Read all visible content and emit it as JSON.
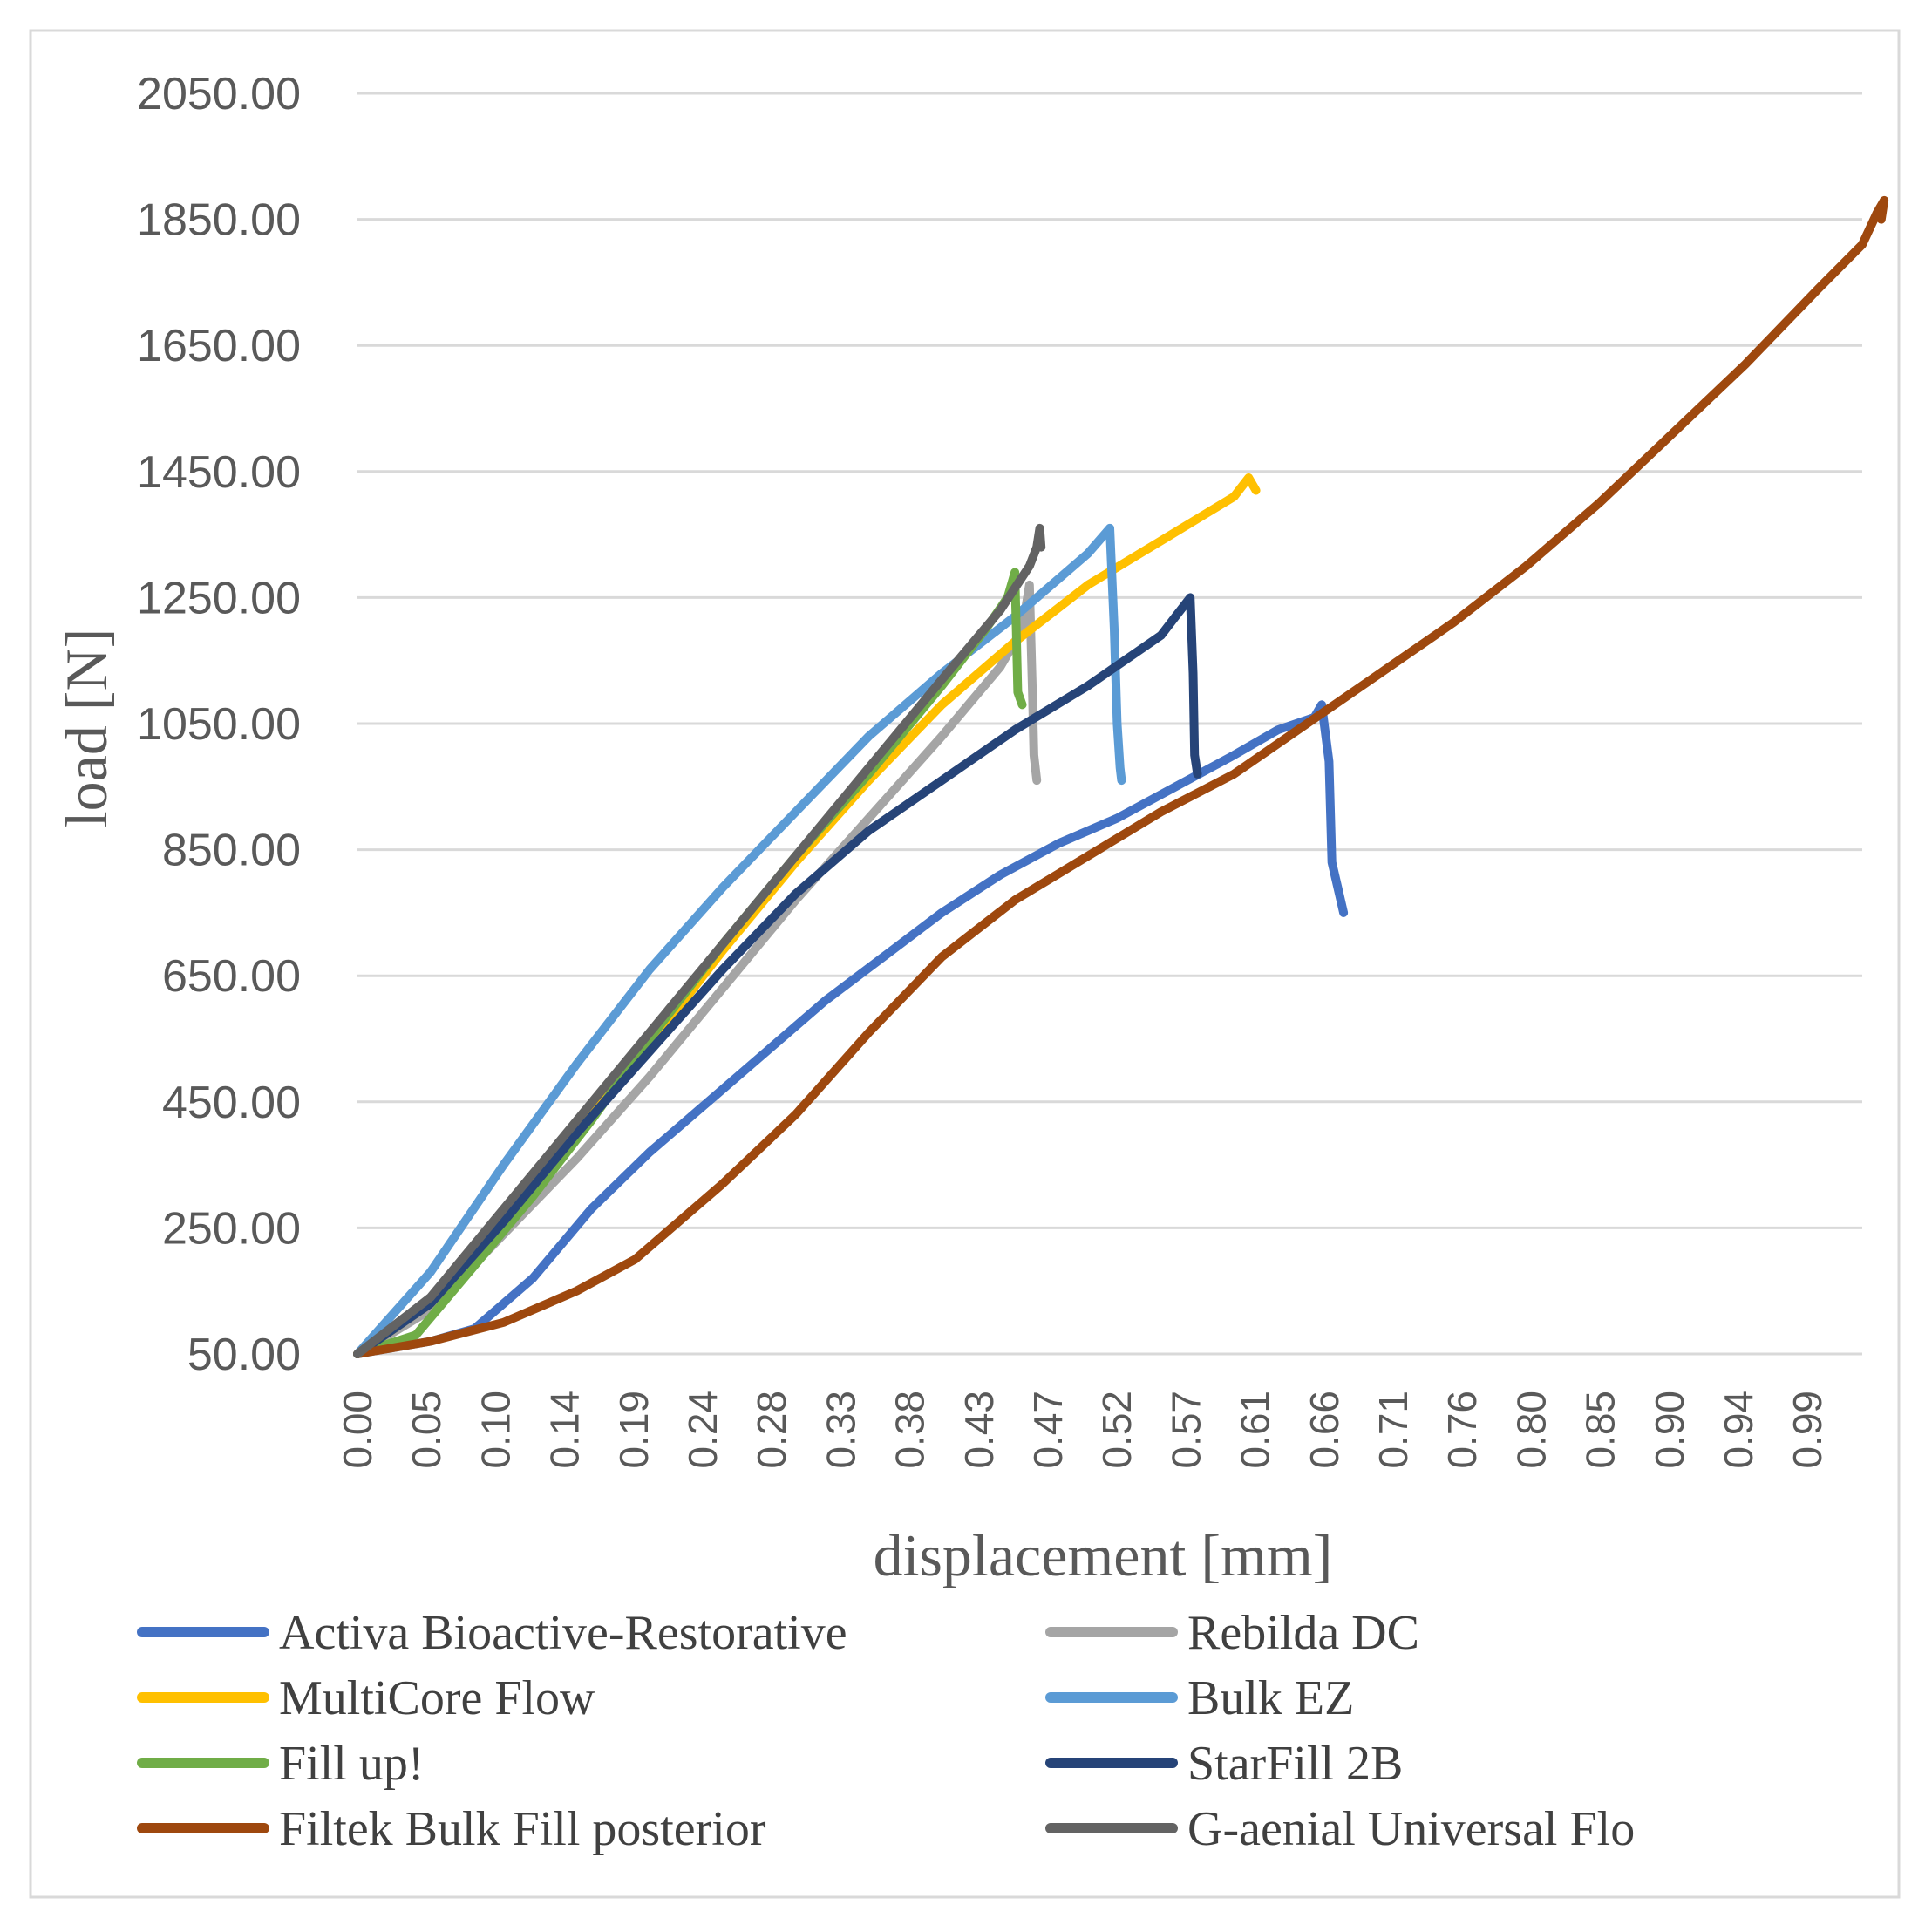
{
  "chart_data": {
    "type": "line",
    "title": "",
    "xlabel": "displacement [mm]",
    "ylabel": "load [N]",
    "xlim": [
      0,
      1.03
    ],
    "ylim": [
      50,
      2050
    ],
    "y_ticks": [
      "50.00",
      "250.00",
      "450.00",
      "650.00",
      "850.00",
      "1050.00",
      "1250.00",
      "1450.00",
      "1650.00",
      "1850.00",
      "2050.00"
    ],
    "x_ticks": [
      "0.00",
      "0.05",
      "0.10",
      "0.14",
      "0.19",
      "0.24",
      "0.28",
      "0.33",
      "0.38",
      "0.43",
      "0.47",
      "0.52",
      "0.57",
      "0.61",
      "0.66",
      "0.71",
      "0.76",
      "0.80",
      "0.85",
      "0.90",
      "0.94",
      "0.99"
    ],
    "grid": true,
    "legend_position": "bottom",
    "series": [
      {
        "name": "Activa Bioactive-Restorative",
        "color": "#4472C4",
        "points": [
          [
            0.0,
            50
          ],
          [
            0.05,
            70
          ],
          [
            0.08,
            90
          ],
          [
            0.12,
            170
          ],
          [
            0.16,
            280
          ],
          [
            0.2,
            370
          ],
          [
            0.24,
            450
          ],
          [
            0.28,
            530
          ],
          [
            0.32,
            610
          ],
          [
            0.36,
            680
          ],
          [
            0.4,
            750
          ],
          [
            0.44,
            810
          ],
          [
            0.48,
            860
          ],
          [
            0.52,
            900
          ],
          [
            0.56,
            950
          ],
          [
            0.6,
            1000
          ],
          [
            0.63,
            1040
          ],
          [
            0.655,
            1060
          ],
          [
            0.66,
            1080
          ],
          [
            0.665,
            990
          ],
          [
            0.667,
            830
          ],
          [
            0.672,
            780
          ],
          [
            0.675,
            750
          ]
        ]
      },
      {
        "name": "Rebilda DC",
        "color": "#A5A5A5",
        "points": [
          [
            0.0,
            50
          ],
          [
            0.05,
            120
          ],
          [
            0.1,
            240
          ],
          [
            0.15,
            360
          ],
          [
            0.2,
            490
          ],
          [
            0.25,
            630
          ],
          [
            0.3,
            770
          ],
          [
            0.35,
            900
          ],
          [
            0.4,
            1030
          ],
          [
            0.44,
            1140
          ],
          [
            0.455,
            1200
          ],
          [
            0.46,
            1270
          ],
          [
            0.462,
            1100
          ],
          [
            0.463,
            1000
          ],
          [
            0.465,
            960
          ]
        ]
      },
      {
        "name": "MultiCore Flow",
        "color": "#FFC000",
        "points": [
          [
            0.0,
            50
          ],
          [
            0.05,
            130
          ],
          [
            0.1,
            260
          ],
          [
            0.15,
            400
          ],
          [
            0.2,
            540
          ],
          [
            0.25,
            690
          ],
          [
            0.3,
            830
          ],
          [
            0.35,
            960
          ],
          [
            0.4,
            1080
          ],
          [
            0.45,
            1180
          ],
          [
            0.5,
            1270
          ],
          [
            0.55,
            1340
          ],
          [
            0.6,
            1410
          ],
          [
            0.61,
            1440
          ],
          [
            0.615,
            1420
          ]
        ]
      },
      {
        "name": "Bulk EZ",
        "color": "#5B9BD5",
        "points": [
          [
            0.0,
            50
          ],
          [
            0.05,
            180
          ],
          [
            0.1,
            350
          ],
          [
            0.15,
            510
          ],
          [
            0.2,
            660
          ],
          [
            0.25,
            790
          ],
          [
            0.3,
            910
          ],
          [
            0.35,
            1030
          ],
          [
            0.4,
            1130
          ],
          [
            0.45,
            1220
          ],
          [
            0.5,
            1320
          ],
          [
            0.515,
            1360
          ],
          [
            0.518,
            1200
          ],
          [
            0.52,
            1050
          ],
          [
            0.522,
            980
          ],
          [
            0.523,
            960
          ]
        ]
      },
      {
        "name": "Fill up!",
        "color": "#70AD47",
        "points": [
          [
            0.0,
            50
          ],
          [
            0.04,
            80
          ],
          [
            0.08,
            190
          ],
          [
            0.12,
            300
          ],
          [
            0.16,
            420
          ],
          [
            0.2,
            550
          ],
          [
            0.25,
            700
          ],
          [
            0.3,
            840
          ],
          [
            0.35,
            970
          ],
          [
            0.4,
            1110
          ],
          [
            0.43,
            1200
          ],
          [
            0.445,
            1250
          ],
          [
            0.45,
            1290
          ],
          [
            0.452,
            1100
          ],
          [
            0.455,
            1080
          ]
        ]
      },
      {
        "name": "StarFill 2B",
        "color": "#264478",
        "points": [
          [
            0.0,
            50
          ],
          [
            0.05,
            130
          ],
          [
            0.1,
            260
          ],
          [
            0.15,
            400
          ],
          [
            0.2,
            530
          ],
          [
            0.25,
            660
          ],
          [
            0.3,
            780
          ],
          [
            0.35,
            880
          ],
          [
            0.4,
            960
          ],
          [
            0.45,
            1040
          ],
          [
            0.5,
            1110
          ],
          [
            0.55,
            1190
          ],
          [
            0.56,
            1220
          ],
          [
            0.57,
            1250
          ],
          [
            0.572,
            1130
          ],
          [
            0.573,
            1000
          ],
          [
            0.575,
            970
          ]
        ]
      },
      {
        "name": "Filtek Bulk Fill posterior",
        "color": "#9E480E",
        "points": [
          [
            0.0,
            50
          ],
          [
            0.05,
            70
          ],
          [
            0.1,
            100
          ],
          [
            0.15,
            150
          ],
          [
            0.19,
            200
          ],
          [
            0.2,
            220
          ],
          [
            0.25,
            320
          ],
          [
            0.3,
            430
          ],
          [
            0.35,
            560
          ],
          [
            0.4,
            680
          ],
          [
            0.45,
            770
          ],
          [
            0.5,
            840
          ],
          [
            0.55,
            910
          ],
          [
            0.6,
            970
          ],
          [
            0.65,
            1050
          ],
          [
            0.7,
            1130
          ],
          [
            0.75,
            1210
          ],
          [
            0.8,
            1300
          ],
          [
            0.85,
            1400
          ],
          [
            0.9,
            1510
          ],
          [
            0.95,
            1620
          ],
          [
            1.0,
            1740
          ],
          [
            1.03,
            1810
          ],
          [
            1.04,
            1860
          ],
          [
            1.045,
            1880
          ],
          [
            1.043,
            1850
          ]
        ]
      },
      {
        "name": "G-aenial Universal Flo",
        "color": "#636363",
        "points": [
          [
            0.0,
            50
          ],
          [
            0.05,
            140
          ],
          [
            0.1,
            280
          ],
          [
            0.15,
            420
          ],
          [
            0.2,
            560
          ],
          [
            0.25,
            700
          ],
          [
            0.3,
            840
          ],
          [
            0.35,
            980
          ],
          [
            0.4,
            1120
          ],
          [
            0.44,
            1230
          ],
          [
            0.46,
            1300
          ],
          [
            0.465,
            1330
          ],
          [
            0.467,
            1360
          ],
          [
            0.468,
            1330
          ]
        ]
      }
    ]
  }
}
